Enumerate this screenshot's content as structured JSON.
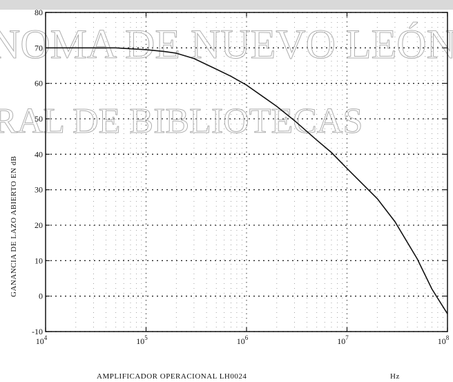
{
  "watermark": {
    "line1": "NOMA DE NUEVO LEÓN",
    "line2": "RAL DE BIBLIOTECAS"
  },
  "chart_data": {
    "type": "line",
    "xscale": "log",
    "xlim": [
      10000,
      100000000
    ],
    "ylim": [
      -10,
      80
    ],
    "grid": true,
    "xlabel": "AMPLIFICADOR OPERACIONAL LH0024",
    "xunit": "Hz",
    "ylabel": "GANANCIA DE LAZO ABIERTO EN dB",
    "x_ticks": [
      10000,
      100000,
      1000000,
      10000000,
      100000000
    ],
    "x_tick_labels": [
      {
        "base": "10",
        "exp": "4"
      },
      {
        "base": "10",
        "exp": "5"
      },
      {
        "base": "10",
        "exp": "6"
      },
      {
        "base": "10",
        "exp": "7"
      },
      {
        "base": "10",
        "exp": "8"
      }
    ],
    "y_ticks": [
      -10,
      0,
      10,
      20,
      30,
      40,
      50,
      60,
      70,
      80
    ],
    "y_tick_labels": [
      "-10",
      "0",
      "10",
      "20",
      "30",
      "40",
      "50",
      "60",
      "70",
      "80"
    ],
    "series": [
      {
        "x": [
          10000,
          20000,
          50000,
          100000,
          150000,
          200000,
          300000,
          500000,
          700000,
          1000000,
          1500000,
          2000000,
          3000000,
          5000000,
          7000000,
          10000000,
          20000000,
          30000000,
          50000000,
          70000000,
          100000000
        ],
        "y": [
          70,
          70,
          70,
          69.5,
          69,
          68.5,
          67,
          64,
          62,
          59.5,
          56,
          53.5,
          49.5,
          44,
          40.5,
          36,
          27.5,
          21,
          10.5,
          2,
          -5
        ]
      }
    ]
  }
}
